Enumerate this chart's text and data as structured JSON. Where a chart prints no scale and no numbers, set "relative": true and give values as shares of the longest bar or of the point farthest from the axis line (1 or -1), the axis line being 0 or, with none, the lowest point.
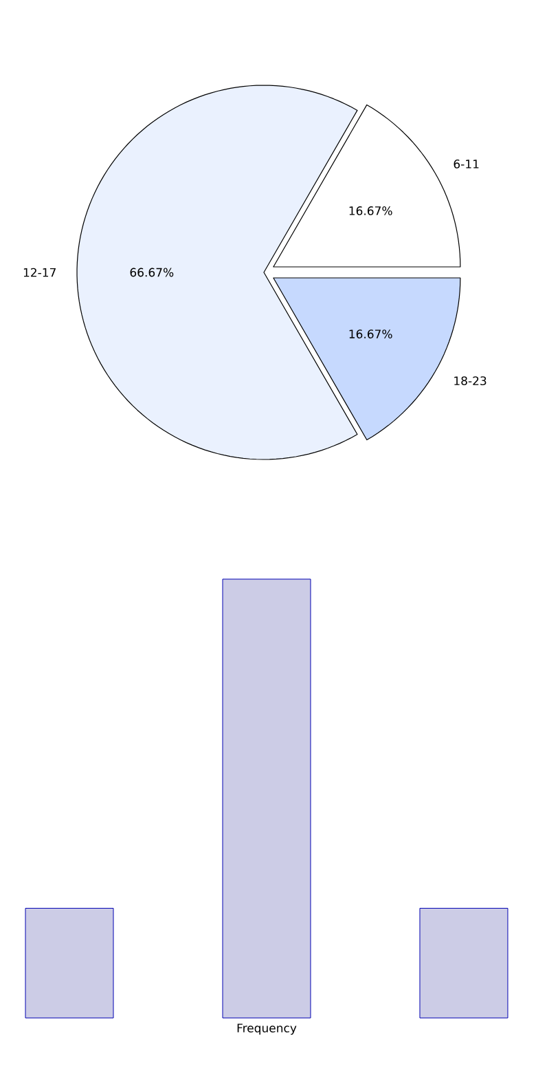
{
  "chart_data": [
    {
      "type": "pie",
      "categories": [
        "6-11",
        "12-17",
        "18-23"
      ],
      "values": [
        16.67,
        66.67,
        16.67
      ],
      "colors": [
        "#ffffff",
        "#eaf1fe",
        "#c6d9fe"
      ],
      "value_labels": [
        "16.67%",
        "66.67%",
        "16.67%"
      ]
    },
    {
      "type": "bar",
      "categories": [
        null,
        null,
        null
      ],
      "values": [
        0.25,
        1,
        0.25
      ],
      "color": "#cccce6",
      "relative": true,
      "xlabel": "Frequency"
    }
  ]
}
